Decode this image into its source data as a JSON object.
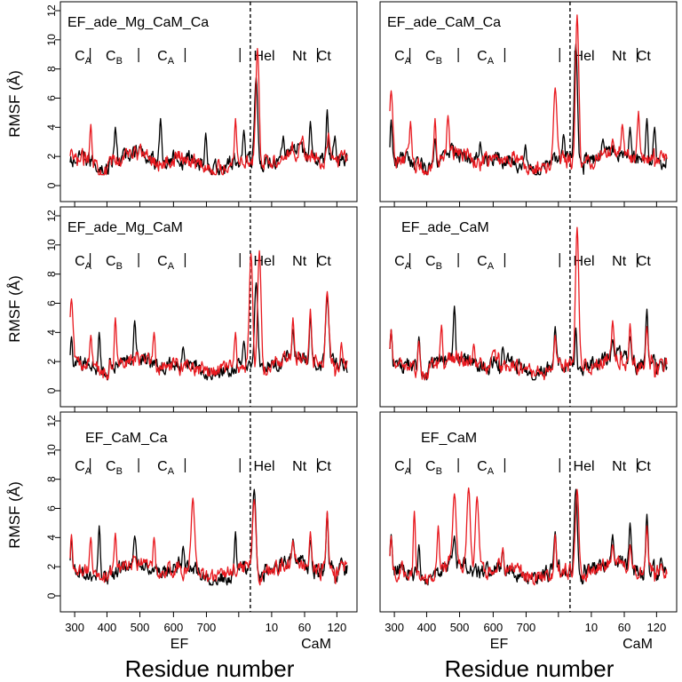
{
  "chart_data": {
    "type": "line",
    "common": {
      "ylabel": "RMSF (Å)",
      "xlabel": "Residue number",
      "ylim": [
        0,
        12
      ],
      "yticks": [
        0,
        2,
        4,
        6,
        8,
        10,
        12
      ],
      "x_group_labels": [
        "EF",
        "CaM"
      ],
      "xtick_labels": [
        "300",
        "400",
        "500",
        "600",
        "700",
        "10",
        "60",
        "120"
      ],
      "region_labels": [
        "C",
        "C",
        "C",
        "Hel",
        "Nt",
        "Ct"
      ],
      "region_subscripts": [
        "A",
        "B",
        "A",
        "",
        "",
        ""
      ],
      "series_colors": [
        "#000000",
        "#e8191f"
      ]
    },
    "panels": [
      {
        "title": "EF_ade_Mg_CaM_Ca",
        "series": [
          {
            "color": "#000000",
            "peaks": [
              [
                70,
                4.0
              ],
              [
                140,
                4.6
              ],
              [
                210,
                3.6
              ],
              [
                269,
                3.8
              ],
              [
                288,
                7.4
              ],
              [
                330,
                3.4
              ],
              [
                345,
                2.5
              ],
              [
                372,
                4.4
              ],
              [
                398,
                5.2
              ],
              [
                410,
                3.4
              ]
            ]
          },
          {
            "color": "#e8191f",
            "peaks": [
              [
                2,
                2.5
              ],
              [
                32,
                4.2
              ],
              [
                100,
                2.7
              ],
              [
                256,
                4.6
              ],
              [
                290,
                9.4
              ],
              [
                345,
                2.4
              ],
              [
                360,
                3.4
              ],
              [
                400,
                3.6
              ],
              [
                420,
                2.4
              ]
            ]
          }
        ]
      },
      {
        "title": "EF_ade_CaM_Ca",
        "series": [
          {
            "color": "#000000",
            "peaks": [
              [
                2,
                4.5
              ],
              [
                70,
                3.2
              ],
              [
                140,
                3.0
              ],
              [
                210,
                2.8
              ],
              [
                269,
                3.5
              ],
              [
                288,
                9.7
              ],
              [
                330,
                3.2
              ],
              [
                372,
                4.0
              ],
              [
                398,
                4.6
              ],
              [
                410,
                4.0
              ]
            ]
          },
          {
            "color": "#e8191f",
            "peaks": [
              [
                2,
                6.5
              ],
              [
                32,
                4.4
              ],
              [
                70,
                4.6
              ],
              [
                90,
                4.8
              ],
              [
                256,
                6.7
              ],
              [
                290,
                11.7
              ],
              [
                345,
                3.2
              ],
              [
                360,
                4.2
              ],
              [
                385,
                5.1
              ],
              [
                420,
                2.4
              ]
            ]
          }
        ]
      },
      {
        "title": "EF_ade_Mg_CaM",
        "series": [
          {
            "color": "#000000",
            "peaks": [
              [
                2,
                3.7
              ],
              [
                45,
                4.0
              ],
              [
                100,
                4.8
              ],
              [
                175,
                3.0
              ],
              [
                269,
                3.4
              ],
              [
                288,
                7.4
              ],
              [
                345,
                4.2
              ],
              [
                372,
                5.2
              ],
              [
                398,
                6.4
              ],
              [
                420,
                2.2
              ]
            ]
          },
          {
            "color": "#e8191f",
            "peaks": [
              [
                2,
                6.3
              ],
              [
                32,
                3.8
              ],
              [
                70,
                5.0
              ],
              [
                130,
                4.0
              ],
              [
                256,
                4.0
              ],
              [
                280,
                9.4
              ],
              [
                293,
                9.6
              ],
              [
                345,
                5.0
              ],
              [
                372,
                5.6
              ],
              [
                398,
                6.8
              ],
              [
                420,
                3.3
              ]
            ]
          }
        ]
      },
      {
        "title": "EF_ade_CaM",
        "series": [
          {
            "color": "#000000",
            "peaks": [
              [
                2,
                4.2
              ],
              [
                45,
                3.7
              ],
              [
                100,
                5.8
              ],
              [
                175,
                3.0
              ],
              [
                256,
                4.4
              ],
              [
                288,
                4.3
              ],
              [
                345,
                3.5
              ],
              [
                372,
                3.7
              ],
              [
                398,
                5.6
              ],
              [
                420,
                2.0
              ]
            ]
          },
          {
            "color": "#e8191f",
            "peaks": [
              [
                2,
                4.2
              ],
              [
                45,
                3.4
              ],
              [
                80,
                4.5
              ],
              [
                130,
                3.2
              ],
              [
                256,
                3.8
              ],
              [
                290,
                11.2
              ],
              [
                345,
                4.8
              ],
              [
                372,
                4.6
              ],
              [
                398,
                4.4
              ],
              [
                420,
                2.2
              ]
            ]
          }
        ]
      },
      {
        "title": "EF_CaM_Ca",
        "series": [
          {
            "color": "#000000",
            "peaks": [
              [
                2,
                3.9
              ],
              [
                45,
                4.8
              ],
              [
                100,
                4.1
              ],
              [
                175,
                3.4
              ],
              [
                256,
                4.4
              ],
              [
                285,
                7.3
              ],
              [
                345,
                3.9
              ],
              [
                372,
                3.8
              ],
              [
                398,
                5.7
              ],
              [
                420,
                2.6
              ]
            ]
          },
          {
            "color": "#e8191f",
            "peaks": [
              [
                2,
                4.2
              ],
              [
                32,
                4.0
              ],
              [
                70,
                4.3
              ],
              [
                130,
                4.0
              ],
              [
                190,
                6.7
              ],
              [
                285,
                6.6
              ],
              [
                345,
                3.8
              ],
              [
                372,
                4.4
              ],
              [
                398,
                5.8
              ],
              [
                420,
                2.4
              ]
            ]
          }
        ]
      },
      {
        "title": "EF_CaM",
        "series": [
          {
            "color": "#000000",
            "peaks": [
              [
                2,
                4.2
              ],
              [
                45,
                3.5
              ],
              [
                100,
                4.1
              ],
              [
                175,
                3.1
              ],
              [
                256,
                4.4
              ],
              [
                288,
                7.3
              ],
              [
                345,
                4.2
              ],
              [
                372,
                5.0
              ],
              [
                398,
                5.6
              ],
              [
                420,
                2.6
              ]
            ]
          },
          {
            "color": "#e8191f",
            "peaks": [
              [
                2,
                4.1
              ],
              [
                38,
                5.8
              ],
              [
                75,
                4.8
              ],
              [
                100,
                7.0
              ],
              [
                122,
                7.4
              ],
              [
                135,
                6.8
              ],
              [
                175,
                3.3
              ],
              [
                256,
                4.2
              ],
              [
                290,
                7.3
              ],
              [
                345,
                3.5
              ],
              [
                372,
                3.5
              ],
              [
                398,
                4.8
              ],
              [
                420,
                2.2
              ]
            ]
          }
        ]
      }
    ]
  }
}
